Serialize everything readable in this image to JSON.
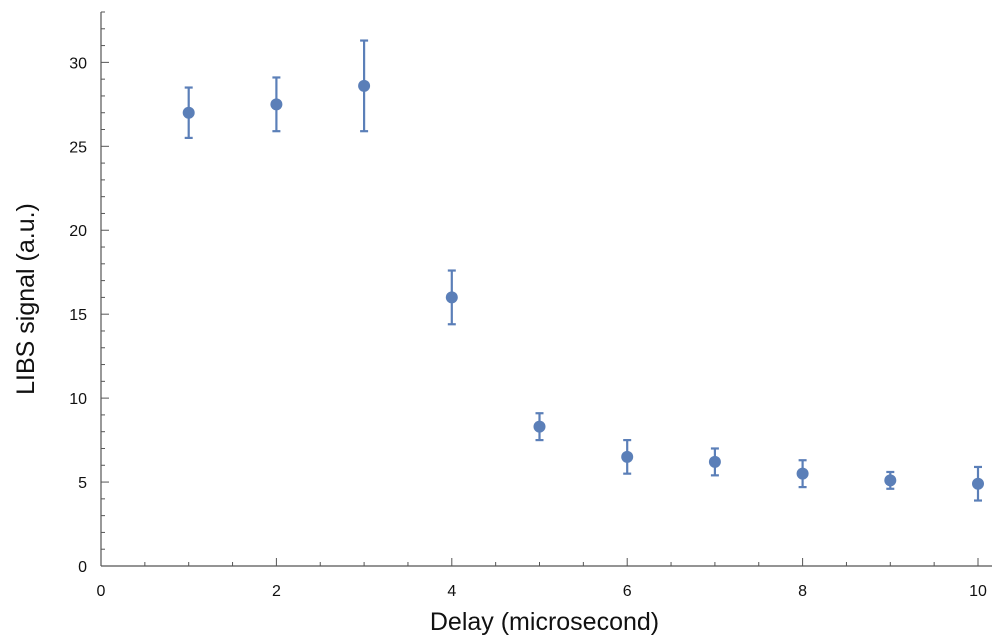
{
  "chart_data": {
    "type": "scatter",
    "title": "",
    "xlabel": "Delay (microsecond)",
    "ylabel": "LIBS signal (a.u.)",
    "xlim": [
      0,
      10
    ],
    "ylim": [
      0,
      33
    ],
    "x_ticks": [
      0,
      2,
      4,
      6,
      8,
      10
    ],
    "x_tick_labels": [
      "0",
      "2",
      "4",
      "6",
      "8",
      "10"
    ],
    "y_ticks": [
      0,
      5,
      10,
      15,
      20,
      25,
      30
    ],
    "y_tick_labels": [
      "0",
      "5",
      "10",
      "15",
      "20",
      "25",
      "30"
    ],
    "grid": false,
    "legend": "none",
    "marker_color": "#5b7fb8",
    "series": [
      {
        "x": [
          1,
          2,
          3,
          4,
          5,
          6,
          7,
          8,
          9,
          10
        ],
        "y": [
          27.0,
          27.5,
          28.6,
          16.0,
          8.3,
          6.5,
          6.2,
          5.5,
          5.1,
          4.9
        ],
        "err_low": [
          25.5,
          25.9,
          25.9,
          14.4,
          7.5,
          5.5,
          5.4,
          4.7,
          4.6,
          3.9
        ],
        "err_high": [
          28.5,
          29.1,
          31.3,
          17.6,
          9.1,
          7.5,
          7.0,
          6.3,
          5.6,
          5.9
        ]
      }
    ]
  }
}
